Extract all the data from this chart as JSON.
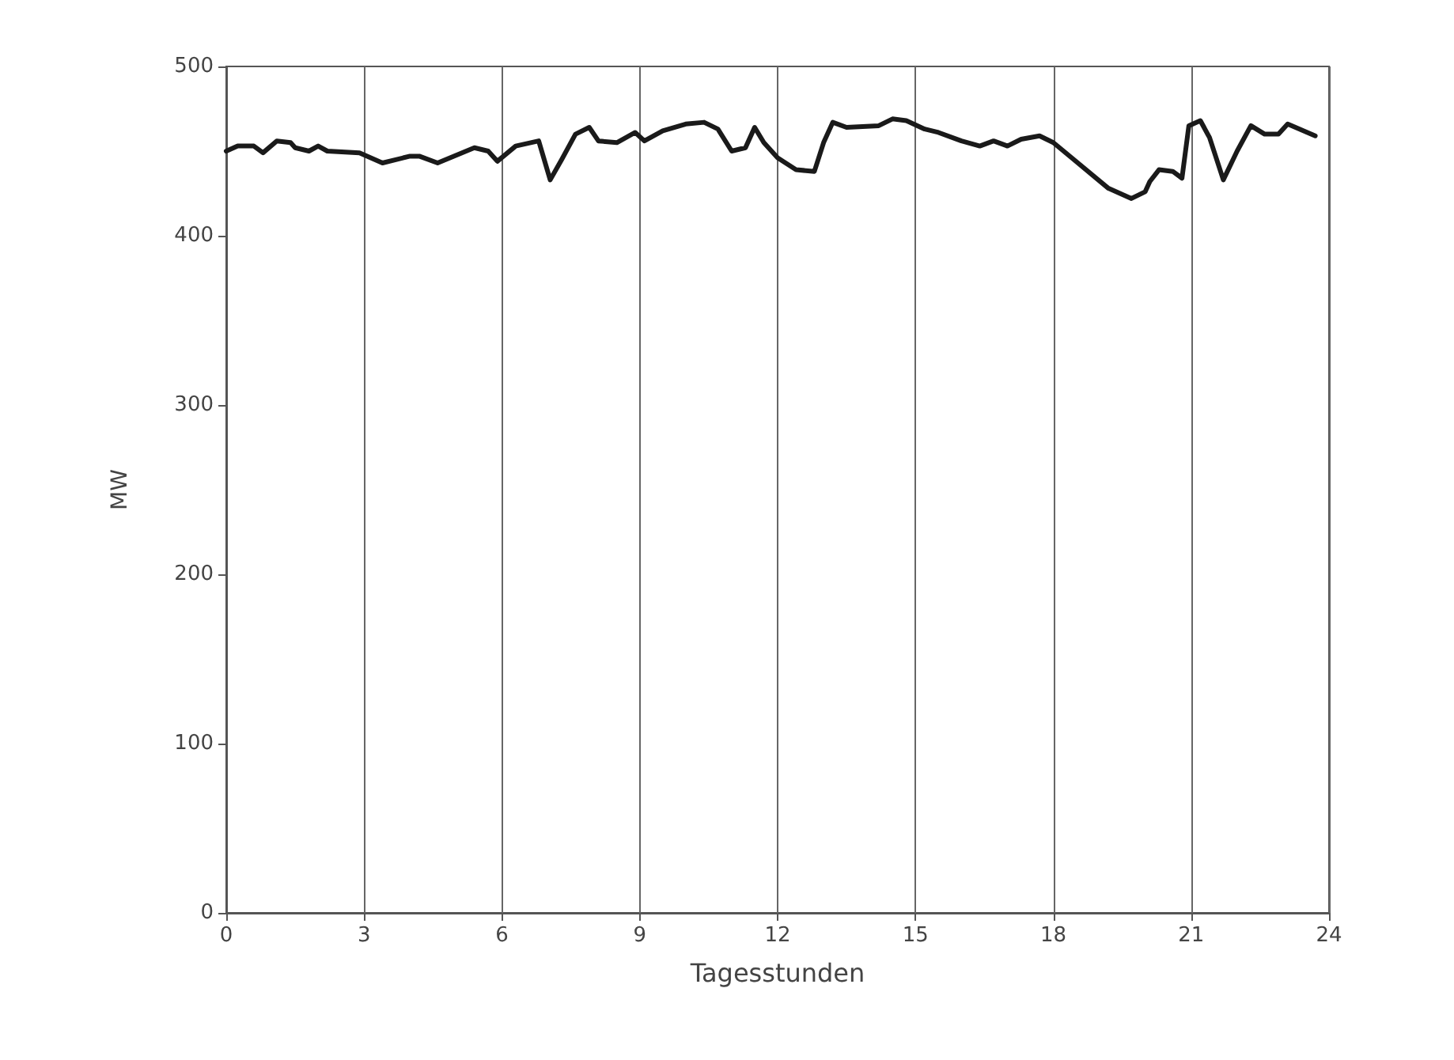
{
  "chart_data": {
    "type": "line",
    "xlabel": "Tagesstunden",
    "ylabel": "MW",
    "xlim": [
      0,
      24
    ],
    "xticks": [
      0,
      3,
      6,
      9,
      12,
      15,
      18,
      21,
      24
    ],
    "ylim": [
      0,
      500
    ],
    "yticks": [
      0,
      100,
      200,
      300,
      400,
      500
    ],
    "grid": "x",
    "marker": "none",
    "line_style": "solid",
    "series": [
      {
        "color": "#1a1a1a",
        "x": [
          0,
          0.25,
          0.6,
          0.8,
          1.1,
          1.4,
          1.5,
          1.8,
          2.0,
          2.2,
          2.9,
          3.4,
          4.0,
          4.2,
          4.6,
          5.4,
          5.7,
          5.9,
          6.3,
          6.8,
          7.05,
          7.3,
          7.6,
          7.9,
          8.1,
          8.5,
          8.9,
          9.1,
          9.5,
          10.0,
          10.4,
          10.7,
          11.0,
          11.3,
          11.5,
          11.7,
          12.0,
          12.4,
          12.8,
          13.0,
          13.2,
          13.5,
          14.2,
          14.5,
          14.8,
          15.2,
          15.5,
          16.0,
          16.4,
          16.7,
          17.0,
          17.3,
          17.7,
          18.0,
          18.4,
          19.2,
          19.7,
          20.0,
          20.1,
          20.3,
          20.6,
          20.8,
          20.95,
          21.2,
          21.4,
          21.7,
          22.0,
          22.3,
          22.6,
          22.9,
          23.1,
          23.7
        ],
        "values": [
          450,
          453,
          453,
          449,
          456,
          455,
          452,
          450,
          453,
          450,
          449,
          443,
          447,
          447,
          443,
          452,
          450,
          444,
          453,
          456,
          433,
          445,
          460,
          464,
          456,
          455,
          461,
          456,
          462,
          466,
          467,
          463,
          450,
          452,
          464,
          455,
          446,
          439,
          438,
          455,
          467,
          464,
          465,
          469,
          468,
          463,
          461,
          456,
          453,
          456,
          453,
          457,
          459,
          455,
          446,
          428,
          422,
          426,
          432,
          439,
          438,
          434,
          465,
          468,
          458,
          433,
          450,
          465,
          460,
          460,
          466,
          459
        ]
      }
    ]
  }
}
